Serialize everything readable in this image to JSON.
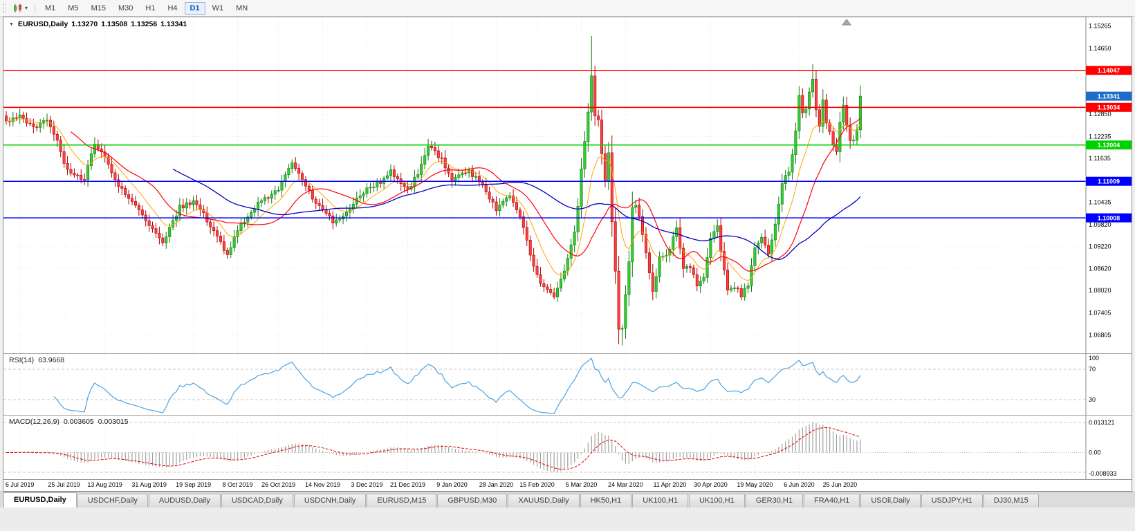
{
  "toolbar": {
    "timeframes": [
      "M1",
      "M5",
      "M15",
      "M30",
      "H1",
      "H4",
      "D1",
      "W1",
      "MN"
    ],
    "active_timeframe": "D1",
    "dropdown_glyph": "▾"
  },
  "chart": {
    "header": {
      "expander": "▼",
      "symbol": "EURUSD,Daily",
      "open": "1.13270",
      "high": "1.13508",
      "low": "1.13256",
      "close": "1.13341"
    }
  },
  "chart_data": {
    "type": "candlestick",
    "symbol": "EURUSD",
    "period": "Daily",
    "candle_count": 252,
    "price_axis": {
      "max": 1.155,
      "min": 1.063,
      "labels": [
        "1.15265",
        "1.14650",
        "1.12850",
        "1.12235",
        "1.11635",
        "1.10435",
        "1.09820",
        "1.09220",
        "1.08620",
        "1.08020",
        "1.07405",
        "1.06805"
      ]
    },
    "x_axis_dates": [
      "6 Jul 2019",
      "25 Jul 2019",
      "13 Aug 2019",
      "31 Aug 2019",
      "19 Sep 2019",
      "8 Oct 2019",
      "26 Oct 2019",
      "14 Nov 2019",
      "3 Dec 2019",
      "21 Dec 2019",
      "9 Jan 2020",
      "28 Jan 2020",
      "15 Feb 2020",
      "5 Mar 2020",
      "24 Mar 2020",
      "11 Apr 2020",
      "30 Apr 2020",
      "19 May 2020",
      "6 Jun 2020",
      "25 Jun 2020"
    ],
    "close_anchors": [
      [
        0,
        1.1268
      ],
      [
        4,
        1.1277
      ],
      [
        8,
        1.1246
      ],
      [
        12,
        1.127
      ],
      [
        15,
        1.1215
      ],
      [
        17,
        1.1145
      ],
      [
        20,
        1.112
      ],
      [
        23,
        1.1105
      ],
      [
        26,
        1.1205
      ],
      [
        29,
        1.117
      ],
      [
        33,
        1.109
      ],
      [
        38,
        1.104
      ],
      [
        42,
        1.098
      ],
      [
        46,
        1.093
      ],
      [
        51,
        1.103
      ],
      [
        55,
        1.1045
      ],
      [
        58,
        1.101
      ],
      [
        61,
        1.096
      ],
      [
        65,
        1.09
      ],
      [
        68,
        1.097
      ],
      [
        74,
        1.104
      ],
      [
        80,
        1.108
      ],
      [
        84,
        1.115
      ],
      [
        89,
        1.107
      ],
      [
        93,
        1.102
      ],
      [
        96,
        1.099
      ],
      [
        99,
        1.1
      ],
      [
        103,
        1.105
      ],
      [
        106,
        1.108
      ],
      [
        110,
        1.11
      ],
      [
        113,
        1.113
      ],
      [
        118,
        1.108
      ],
      [
        121,
        1.112
      ],
      [
        124,
        1.12
      ],
      [
        128,
        1.116
      ],
      [
        131,
        1.1105
      ],
      [
        136,
        1.113
      ],
      [
        140,
        1.109
      ],
      [
        144,
        1.1022
      ],
      [
        148,
        1.106
      ],
      [
        151,
        1.1
      ],
      [
        156,
        1.084
      ],
      [
        159,
        1.08
      ],
      [
        161,
        1.079
      ],
      [
        164,
        1.0855
      ],
      [
        167,
        1.096
      ],
      [
        168,
        1.103
      ],
      [
        169,
        1.1135
      ],
      [
        171,
        1.1284
      ],
      [
        172,
        1.139
      ],
      [
        173,
        1.128
      ],
      [
        174,
        1.127
      ],
      [
        175,
        1.118
      ],
      [
        176,
        1.1105
      ],
      [
        177,
        1.118
      ],
      [
        178,
        1.0995
      ],
      [
        179,
        1.086
      ],
      [
        180,
        1.069
      ],
      [
        181,
        1.07
      ],
      [
        182,
        1.0785
      ],
      [
        183,
        1.088
      ],
      [
        184,
        1.103
      ],
      [
        185,
        1.104
      ],
      [
        186,
        1.101
      ],
      [
        187,
        1.095
      ],
      [
        188,
        1.09
      ],
      [
        190,
        1.08
      ],
      [
        192,
        1.089
      ],
      [
        195,
        1.091
      ],
      [
        197,
        1.098
      ],
      [
        199,
        1.086
      ],
      [
        201,
        1.087
      ],
      [
        203,
        1.082
      ],
      [
        205,
        1.084
      ],
      [
        207,
        1.095
      ],
      [
        209,
        1.0975
      ],
      [
        210,
        1.091
      ],
      [
        212,
        1.08
      ],
      [
        214,
        1.0815
      ],
      [
        216,
        1.079
      ],
      [
        218,
        1.082
      ],
      [
        220,
        1.092
      ],
      [
        222,
        1.095
      ],
      [
        224,
        1.09
      ],
      [
        226,
        1.098
      ],
      [
        228,
        1.11
      ],
      [
        230,
        1.113
      ],
      [
        231,
        1.1173
      ],
      [
        232,
        1.1234
      ],
      [
        233,
        1.1338
      ],
      [
        234,
        1.1289
      ],
      [
        235,
        1.1294
      ],
      [
        236,
        1.1344
      ],
      [
        237,
        1.1375
      ],
      [
        238,
        1.1298
      ],
      [
        239,
        1.1256
      ],
      [
        240,
        1.1323
      ],
      [
        241,
        1.1264
      ],
      [
        242,
        1.1243
      ],
      [
        243,
        1.1206
      ],
      [
        244,
        1.1177
      ],
      [
        245,
        1.126
      ],
      [
        246,
        1.1308
      ],
      [
        247,
        1.1251
      ],
      [
        248,
        1.1218
      ],
      [
        249,
        1.1219
      ],
      [
        250,
        1.1241
      ],
      [
        251,
        1.13341
      ]
    ],
    "extremes": {
      "12": {
        "high": 1.1286
      },
      "161": {
        "low": 1.0778
      },
      "172": {
        "high": 1.1499
      },
      "180": {
        "low": 1.0655
      },
      "181": {
        "low": 1.0652
      },
      "237": {
        "high": 1.1422
      }
    },
    "levels": [
      {
        "price": 1.14047,
        "label": "1.14047",
        "color": "#FF0000",
        "type": "resistance"
      },
      {
        "price": 1.13034,
        "label": "1.13034",
        "color": "#FF0000",
        "type": "resistance"
      },
      {
        "price": 1.12004,
        "label": "1.12004",
        "color": "#00D200",
        "type": "support"
      },
      {
        "price": 1.11009,
        "label": "1.11009",
        "color": "#0000FF",
        "type": "support"
      },
      {
        "price": 1.10008,
        "label": "1.10008",
        "color": "#0000FF",
        "type": "support"
      }
    ],
    "current_price": {
      "value": 1.13341,
      "label": "1.13341",
      "color": "#1E6EC8"
    },
    "moving_averages": [
      {
        "period": 10,
        "method": "ema",
        "color": "#FFA500"
      },
      {
        "period": 20,
        "method": "sma",
        "color": "#FF0000"
      },
      {
        "period": 50,
        "method": "sma",
        "color": "#0000C0"
      }
    ],
    "candle_colors": {
      "up_fill": "#33CC33",
      "up_stroke": "#0E7A0E",
      "down_fill": "#FF4040",
      "down_stroke": "#A80000"
    },
    "indicators": {
      "rsi": {
        "name": "RSI(14)",
        "period": 14,
        "value": "63.9668",
        "levels": [
          "100",
          "70",
          "30"
        ],
        "level_values": [
          100,
          70,
          30
        ],
        "line_color": "#4DA2DF",
        "scale_max": 90,
        "scale_min": 10
      },
      "macd": {
        "name": "MACD(12,26,9)",
        "fast": 12,
        "slow": 26,
        "signal": 9,
        "value_main": "0.003605",
        "value_signal": "0.003015",
        "axis_max": "0.013121",
        "axis_zero": "0.00",
        "axis_min": "-0.008933",
        "hist_color": "#A0A0A0",
        "signal_color": "#E00000"
      }
    }
  },
  "tab_bar": {
    "tabs": [
      "EURUSD,Daily",
      "USDCHF,Daily",
      "AUDUSD,Daily",
      "USDCAD,Daily",
      "USDCNH,Daily",
      "EURUSD,M15",
      "GBPUSD,M30",
      "XAUUSD,Daily",
      "HK50,H1",
      "UK100,H1",
      "UK100,H1",
      "GER30,H1",
      "FRA40,H1",
      "USOil,Daily",
      "USDJPY,H1",
      "DJ30,M15"
    ],
    "active_index": 0
  }
}
